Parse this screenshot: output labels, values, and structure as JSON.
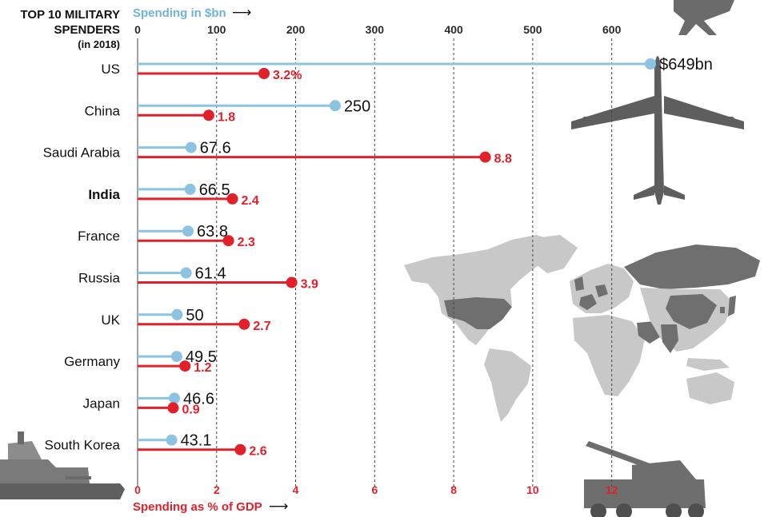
{
  "chart_data": {
    "type": "bar",
    "title": [
      "TOP 10 MILITARY",
      "SPENDERS",
      "(in 2018)"
    ],
    "categories": [
      "US",
      "China",
      "Saudi Arabia",
      "India",
      "France",
      "Russia",
      "UK",
      "Germany",
      "Japan",
      "South Korea"
    ],
    "highlight_category": "India",
    "series": [
      {
        "name": "Spending in $bn",
        "axis": "top",
        "color": "#8cc3e0",
        "values": [
          649,
          250,
          67.6,
          66.5,
          63.8,
          61.4,
          50,
          49.5,
          46.6,
          43.1
        ],
        "labels": [
          "$649bn",
          "250",
          "67.6",
          "66.5",
          "63.8",
          "61.4",
          "50",
          "49.5",
          "46.6",
          "43.1"
        ]
      },
      {
        "name": "Spending as % of GDP",
        "axis": "bottom",
        "color": "#e2202a",
        "values": [
          3.2,
          1.8,
          8.8,
          2.4,
          2.3,
          3.9,
          2.7,
          1.2,
          0.9,
          2.6
        ],
        "labels": [
          "3.2%",
          "1.8",
          "8.8",
          "2.4",
          "2.3",
          "3.9",
          "2.7",
          "1.2",
          "0.9",
          "2.6"
        ]
      }
    ],
    "top_axis": {
      "label": "Spending in $bn",
      "arrow": "⟶",
      "ticks": [
        0,
        100,
        200,
        300,
        400,
        500,
        600
      ],
      "range": [
        0,
        656
      ]
    },
    "bottom_axis": {
      "label": "Spending as % of GDP",
      "arrow": "⟶",
      "ticks": [
        0,
        2,
        4,
        6,
        8,
        10,
        12
      ],
      "range": [
        0,
        13.12
      ]
    },
    "grid": true
  },
  "colors": {
    "spend": "#8cc3e0",
    "gdp": "#e2202a",
    "grid": "#444444",
    "map_light": "#c8c8c8",
    "map_dark": "#6f6f6f",
    "vehicle": "#6b6b6b"
  },
  "decorations": {
    "illustrations": [
      "fighter-jet",
      "airliner",
      "world-map",
      "warship",
      "artillery-truck"
    ]
  }
}
